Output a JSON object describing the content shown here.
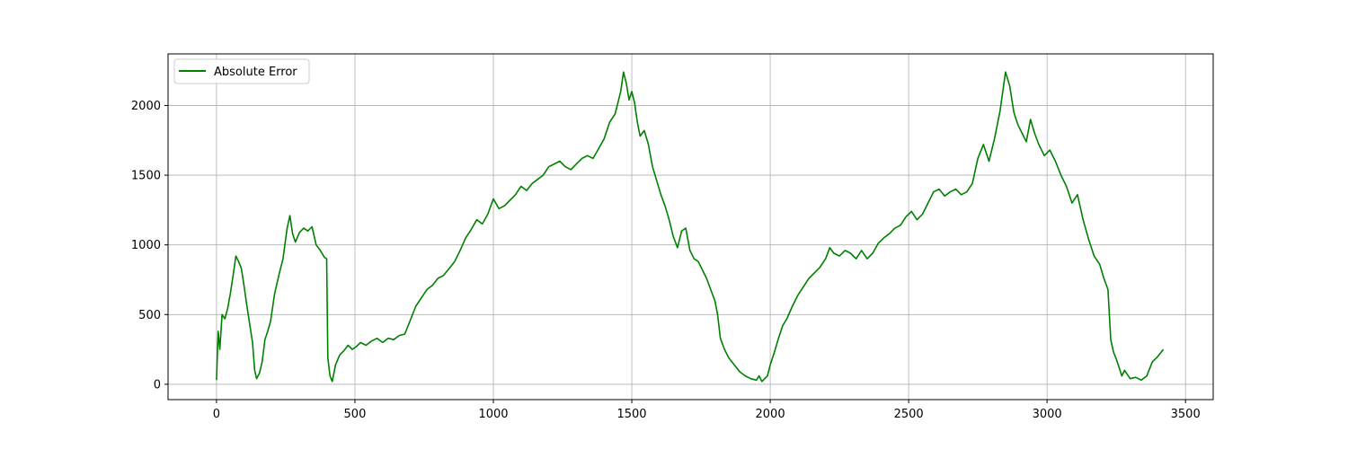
{
  "chart_data": {
    "type": "line",
    "title": "",
    "xlabel": "",
    "ylabel": "",
    "xlim": [
      -175,
      3600
    ],
    "ylim": [
      -110,
      2370
    ],
    "x_ticks": [
      0,
      500,
      1000,
      1500,
      2000,
      2500,
      3000,
      3500
    ],
    "y_ticks": [
      0,
      500,
      1000,
      1500,
      2000
    ],
    "grid": true,
    "legend_position": "top-left",
    "series": [
      {
        "name": "Absolute Error",
        "color": "#008000",
        "points": [
          [
            0,
            30
          ],
          [
            6,
            380
          ],
          [
            12,
            250
          ],
          [
            20,
            500
          ],
          [
            30,
            470
          ],
          [
            40,
            540
          ],
          [
            50,
            650
          ],
          [
            60,
            780
          ],
          [
            70,
            920
          ],
          [
            80,
            880
          ],
          [
            90,
            830
          ],
          [
            100,
            700
          ],
          [
            110,
            560
          ],
          [
            120,
            430
          ],
          [
            130,
            300
          ],
          [
            138,
            100
          ],
          [
            145,
            40
          ],
          [
            155,
            80
          ],
          [
            165,
            160
          ],
          [
            175,
            320
          ],
          [
            185,
            380
          ],
          [
            195,
            450
          ],
          [
            210,
            650
          ],
          [
            225,
            780
          ],
          [
            240,
            900
          ],
          [
            255,
            1120
          ],
          [
            265,
            1210
          ],
          [
            275,
            1080
          ],
          [
            285,
            1020
          ],
          [
            300,
            1090
          ],
          [
            315,
            1120
          ],
          [
            330,
            1100
          ],
          [
            345,
            1130
          ],
          [
            360,
            1000
          ],
          [
            375,
            960
          ],
          [
            390,
            910
          ],
          [
            398,
            900
          ],
          [
            402,
            190
          ],
          [
            410,
            60
          ],
          [
            418,
            20
          ],
          [
            430,
            140
          ],
          [
            445,
            210
          ],
          [
            460,
            240
          ],
          [
            475,
            280
          ],
          [
            490,
            250
          ],
          [
            505,
            270
          ],
          [
            520,
            300
          ],
          [
            540,
            280
          ],
          [
            560,
            310
          ],
          [
            580,
            330
          ],
          [
            600,
            300
          ],
          [
            620,
            330
          ],
          [
            640,
            320
          ],
          [
            660,
            350
          ],
          [
            680,
            360
          ],
          [
            700,
            460
          ],
          [
            720,
            560
          ],
          [
            740,
            620
          ],
          [
            760,
            680
          ],
          [
            780,
            710
          ],
          [
            800,
            760
          ],
          [
            820,
            780
          ],
          [
            840,
            830
          ],
          [
            860,
            880
          ],
          [
            880,
            960
          ],
          [
            900,
            1050
          ],
          [
            920,
            1110
          ],
          [
            940,
            1180
          ],
          [
            960,
            1150
          ],
          [
            980,
            1220
          ],
          [
            1000,
            1330
          ],
          [
            1020,
            1260
          ],
          [
            1040,
            1280
          ],
          [
            1060,
            1320
          ],
          [
            1080,
            1360
          ],
          [
            1100,
            1420
          ],
          [
            1120,
            1390
          ],
          [
            1140,
            1440
          ],
          [
            1160,
            1470
          ],
          [
            1180,
            1500
          ],
          [
            1200,
            1560
          ],
          [
            1220,
            1580
          ],
          [
            1240,
            1600
          ],
          [
            1260,
            1560
          ],
          [
            1280,
            1540
          ],
          [
            1300,
            1580
          ],
          [
            1320,
            1620
          ],
          [
            1340,
            1640
          ],
          [
            1360,
            1620
          ],
          [
            1380,
            1690
          ],
          [
            1400,
            1760
          ],
          [
            1420,
            1880
          ],
          [
            1440,
            1940
          ],
          [
            1460,
            2100
          ],
          [
            1470,
            2240
          ],
          [
            1480,
            2160
          ],
          [
            1490,
            2040
          ],
          [
            1500,
            2100
          ],
          [
            1510,
            2020
          ],
          [
            1520,
            1880
          ],
          [
            1530,
            1780
          ],
          [
            1545,
            1820
          ],
          [
            1560,
            1720
          ],
          [
            1575,
            1560
          ],
          [
            1590,
            1460
          ],
          [
            1605,
            1360
          ],
          [
            1620,
            1280
          ],
          [
            1635,
            1180
          ],
          [
            1650,
            1060
          ],
          [
            1665,
            980
          ],
          [
            1680,
            1100
          ],
          [
            1695,
            1120
          ],
          [
            1710,
            960
          ],
          [
            1725,
            900
          ],
          [
            1740,
            880
          ],
          [
            1755,
            820
          ],
          [
            1770,
            760
          ],
          [
            1785,
            680
          ],
          [
            1800,
            600
          ],
          [
            1810,
            500
          ],
          [
            1820,
            330
          ],
          [
            1835,
            250
          ],
          [
            1850,
            190
          ],
          [
            1870,
            140
          ],
          [
            1890,
            90
          ],
          [
            1910,
            60
          ],
          [
            1930,
            40
          ],
          [
            1950,
            30
          ],
          [
            1960,
            60
          ],
          [
            1970,
            20
          ],
          [
            1980,
            40
          ],
          [
            1990,
            60
          ],
          [
            2000,
            140
          ],
          [
            2015,
            230
          ],
          [
            2030,
            330
          ],
          [
            2045,
            420
          ],
          [
            2060,
            470
          ],
          [
            2080,
            560
          ],
          [
            2100,
            640
          ],
          [
            2120,
            700
          ],
          [
            2140,
            760
          ],
          [
            2160,
            800
          ],
          [
            2180,
            840
          ],
          [
            2200,
            900
          ],
          [
            2215,
            980
          ],
          [
            2230,
            940
          ],
          [
            2250,
            920
          ],
          [
            2270,
            960
          ],
          [
            2290,
            940
          ],
          [
            2310,
            900
          ],
          [
            2330,
            960
          ],
          [
            2350,
            900
          ],
          [
            2370,
            940
          ],
          [
            2390,
            1010
          ],
          [
            2410,
            1050
          ],
          [
            2430,
            1080
          ],
          [
            2450,
            1120
          ],
          [
            2470,
            1140
          ],
          [
            2490,
            1200
          ],
          [
            2510,
            1240
          ],
          [
            2530,
            1180
          ],
          [
            2550,
            1220
          ],
          [
            2570,
            1300
          ],
          [
            2590,
            1380
          ],
          [
            2610,
            1400
          ],
          [
            2630,
            1350
          ],
          [
            2650,
            1380
          ],
          [
            2670,
            1400
          ],
          [
            2690,
            1360
          ],
          [
            2710,
            1380
          ],
          [
            2730,
            1440
          ],
          [
            2750,
            1620
          ],
          [
            2770,
            1720
          ],
          [
            2790,
            1600
          ],
          [
            2810,
            1760
          ],
          [
            2830,
            1960
          ],
          [
            2850,
            2240
          ],
          [
            2865,
            2140
          ],
          [
            2880,
            1950
          ],
          [
            2895,
            1860
          ],
          [
            2910,
            1800
          ],
          [
            2925,
            1740
          ],
          [
            2940,
            1900
          ],
          [
            2955,
            1800
          ],
          [
            2970,
            1720
          ],
          [
            2990,
            1640
          ],
          [
            3010,
            1680
          ],
          [
            3030,
            1600
          ],
          [
            3050,
            1500
          ],
          [
            3070,
            1420
          ],
          [
            3090,
            1300
          ],
          [
            3110,
            1360
          ],
          [
            3130,
            1180
          ],
          [
            3150,
            1040
          ],
          [
            3170,
            920
          ],
          [
            3190,
            860
          ],
          [
            3205,
            760
          ],
          [
            3220,
            680
          ],
          [
            3230,
            320
          ],
          [
            3240,
            230
          ],
          [
            3250,
            180
          ],
          [
            3260,
            120
          ],
          [
            3270,
            60
          ],
          [
            3280,
            100
          ],
          [
            3300,
            40
          ],
          [
            3320,
            50
          ],
          [
            3340,
            30
          ],
          [
            3360,
            60
          ],
          [
            3380,
            160
          ],
          [
            3400,
            200
          ],
          [
            3420,
            250
          ]
        ]
      }
    ]
  }
}
